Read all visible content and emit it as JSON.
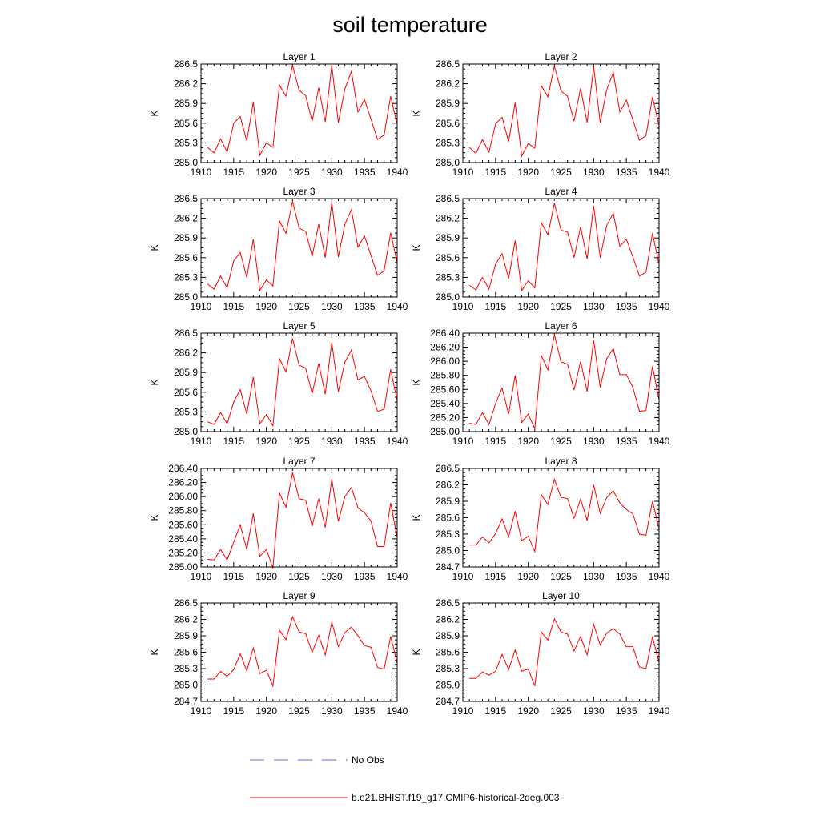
{
  "title": "soil temperature",
  "legend": [
    {
      "label": "No Obs",
      "color": "#6666cc",
      "style": "dashed"
    },
    {
      "label": "b.e21.BHIST.f19_g17.CMIP6-historical-2deg.003",
      "color": "#ff0000",
      "style": "solid"
    }
  ],
  "chart_data": [
    {
      "type": "line",
      "title": "Layer 1",
      "xlabel": "",
      "ylabel": "K",
      "xlim": [
        1910,
        1940
      ],
      "ylim": [
        285.0,
        286.5
      ],
      "xticks": [
        1910,
        1915,
        1920,
        1925,
        1930,
        1935,
        1940
      ],
      "yticks": [
        285.0,
        285.3,
        285.6,
        285.9,
        286.2,
        286.5
      ],
      "ytick_format": 1,
      "x": [
        1911,
        1912,
        1913,
        1914,
        1915,
        1916,
        1917,
        1918,
        1919,
        1920,
        1921,
        1922,
        1923,
        1924,
        1925,
        1926,
        1927,
        1928,
        1929,
        1930,
        1931,
        1932,
        1933,
        1934,
        1935,
        1936,
        1937,
        1938,
        1939,
        1940
      ],
      "series": [
        {
          "color": "#ff0000",
          "values": [
            285.23,
            285.15,
            285.36,
            285.16,
            285.6,
            285.7,
            285.33,
            285.92,
            285.11,
            285.3,
            285.23,
            286.18,
            286.01,
            286.48,
            286.1,
            286.02,
            285.63,
            286.14,
            285.62,
            286.48,
            285.61,
            286.12,
            286.39,
            285.77,
            285.96,
            285.66,
            285.35,
            285.42,
            286.01,
            285.58
          ]
        }
      ]
    },
    {
      "type": "line",
      "title": "Layer 2",
      "xlabel": "",
      "ylabel": "K",
      "xlim": [
        1910,
        1940
      ],
      "ylim": [
        285.0,
        286.5
      ],
      "xticks": [
        1910,
        1915,
        1920,
        1925,
        1930,
        1935,
        1940
      ],
      "yticks": [
        285.0,
        285.3,
        285.6,
        285.9,
        286.2,
        286.5
      ],
      "ytick_format": 1,
      "x": [
        1911,
        1912,
        1913,
        1914,
        1915,
        1916,
        1917,
        1918,
        1919,
        1920,
        1921,
        1922,
        1923,
        1924,
        1925,
        1926,
        1927,
        1928,
        1929,
        1930,
        1931,
        1932,
        1933,
        1934,
        1935,
        1936,
        1937,
        1938,
        1939,
        1940
      ],
      "series": [
        {
          "color": "#ff0000",
          "values": [
            285.23,
            285.14,
            285.35,
            285.16,
            285.59,
            285.69,
            285.32,
            285.91,
            285.1,
            285.29,
            285.22,
            286.17,
            286.0,
            286.47,
            286.09,
            286.01,
            285.63,
            286.13,
            285.61,
            286.46,
            285.61,
            286.11,
            286.37,
            285.77,
            285.95,
            285.65,
            285.34,
            285.41,
            286.0,
            285.56
          ]
        }
      ]
    },
    {
      "type": "line",
      "title": "Layer 3",
      "xlabel": "",
      "ylabel": "K",
      "xlim": [
        1910,
        1940
      ],
      "ylim": [
        285.0,
        286.5
      ],
      "xticks": [
        1910,
        1915,
        1920,
        1925,
        1930,
        1935,
        1940
      ],
      "yticks": [
        285.0,
        285.3,
        285.6,
        285.9,
        286.2,
        286.5
      ],
      "ytick_format": 1,
      "x": [
        1911,
        1912,
        1913,
        1914,
        1915,
        1916,
        1917,
        1918,
        1919,
        1920,
        1921,
        1922,
        1923,
        1924,
        1925,
        1926,
        1927,
        1928,
        1929,
        1930,
        1931,
        1932,
        1933,
        1934,
        1935,
        1936,
        1937,
        1938,
        1939,
        1940
      ],
      "series": [
        {
          "color": "#ff0000",
          "values": [
            285.2,
            285.12,
            285.32,
            285.14,
            285.55,
            285.68,
            285.3,
            285.88,
            285.1,
            285.26,
            285.17,
            286.16,
            285.97,
            286.46,
            286.05,
            286.0,
            285.62,
            286.11,
            285.6,
            286.44,
            285.61,
            286.11,
            286.33,
            285.76,
            285.93,
            285.63,
            285.33,
            285.4,
            285.98,
            285.52
          ]
        }
      ]
    },
    {
      "type": "line",
      "title": "Layer 4",
      "xlabel": "",
      "ylabel": "K",
      "xlim": [
        1910,
        1940
      ],
      "ylim": [
        285.0,
        286.5
      ],
      "xticks": [
        1910,
        1915,
        1920,
        1925,
        1930,
        1935,
        1940
      ],
      "yticks": [
        285.0,
        285.3,
        285.6,
        285.9,
        286.2,
        286.5
      ],
      "ytick_format": 1,
      "x": [
        1911,
        1912,
        1913,
        1914,
        1915,
        1916,
        1917,
        1918,
        1919,
        1920,
        1921,
        1922,
        1923,
        1924,
        1925,
        1926,
        1927,
        1928,
        1929,
        1930,
        1931,
        1932,
        1933,
        1934,
        1935,
        1936,
        1937,
        1938,
        1939,
        1940
      ],
      "series": [
        {
          "color": "#ff0000",
          "values": [
            285.18,
            285.11,
            285.3,
            285.12,
            285.5,
            285.66,
            285.28,
            285.86,
            285.1,
            285.25,
            285.14,
            286.13,
            285.95,
            286.43,
            286.02,
            285.99,
            285.6,
            286.07,
            285.58,
            286.39,
            285.6,
            286.09,
            286.28,
            285.77,
            285.88,
            285.61,
            285.32,
            285.38,
            285.97,
            285.5
          ]
        }
      ]
    },
    {
      "type": "line",
      "title": "Layer 5",
      "xlabel": "",
      "ylabel": "K",
      "xlim": [
        1910,
        1940
      ],
      "ylim": [
        285.0,
        286.5
      ],
      "xticks": [
        1910,
        1915,
        1920,
        1925,
        1930,
        1935,
        1940
      ],
      "yticks": [
        285.0,
        285.3,
        285.6,
        285.9,
        286.2,
        286.5
      ],
      "ytick_format": 1,
      "x": [
        1911,
        1912,
        1913,
        1914,
        1915,
        1916,
        1917,
        1918,
        1919,
        1920,
        1921,
        1922,
        1923,
        1924,
        1925,
        1926,
        1927,
        1928,
        1929,
        1930,
        1931,
        1932,
        1933,
        1934,
        1935,
        1936,
        1937,
        1938,
        1939,
        1940
      ],
      "series": [
        {
          "color": "#ff0000",
          "values": [
            285.15,
            285.11,
            285.29,
            285.12,
            285.45,
            285.64,
            285.27,
            285.83,
            285.12,
            285.26,
            285.09,
            286.11,
            285.91,
            286.42,
            286.01,
            285.97,
            285.58,
            286.04,
            285.57,
            286.36,
            285.61,
            286.06,
            286.24,
            285.79,
            285.84,
            285.62,
            285.31,
            285.34,
            285.95,
            285.47
          ]
        }
      ]
    },
    {
      "type": "line",
      "title": "Layer 6",
      "xlabel": "",
      "ylabel": "K",
      "xlim": [
        1910,
        1940
      ],
      "ylim": [
        285.0,
        286.4
      ],
      "xticks": [
        1910,
        1915,
        1920,
        1925,
        1930,
        1935,
        1940
      ],
      "yticks": [
        285.0,
        285.2,
        285.4,
        285.6,
        285.8,
        286.0,
        286.2,
        286.4
      ],
      "ytick_format": 2,
      "x": [
        1911,
        1912,
        1913,
        1914,
        1915,
        1916,
        1917,
        1918,
        1919,
        1920,
        1921,
        1922,
        1923,
        1924,
        1925,
        1926,
        1927,
        1928,
        1929,
        1930,
        1931,
        1932,
        1933,
        1934,
        1935,
        1936,
        1937,
        1938,
        1939,
        1940
      ],
      "series": [
        {
          "color": "#ff0000",
          "values": [
            285.12,
            285.1,
            285.27,
            285.1,
            285.4,
            285.62,
            285.25,
            285.8,
            285.13,
            285.25,
            285.04,
            286.08,
            285.88,
            286.38,
            285.99,
            285.96,
            285.59,
            286.0,
            285.57,
            286.3,
            285.63,
            286.04,
            286.18,
            285.81,
            285.81,
            285.63,
            285.29,
            285.3,
            285.93,
            285.45
          ]
        }
      ]
    },
    {
      "type": "line",
      "title": "Layer 7",
      "xlabel": "",
      "ylabel": "K",
      "xlim": [
        1910,
        1940
      ],
      "ylim": [
        285.0,
        286.4
      ],
      "xticks": [
        1910,
        1915,
        1920,
        1925,
        1930,
        1935,
        1940
      ],
      "yticks": [
        285.0,
        285.2,
        285.4,
        285.6,
        285.8,
        286.0,
        286.2,
        286.4
      ],
      "ytick_format": 2,
      "x": [
        1911,
        1912,
        1913,
        1914,
        1915,
        1916,
        1917,
        1918,
        1919,
        1920,
        1921,
        1922,
        1923,
        1924,
        1925,
        1926,
        1927,
        1928,
        1929,
        1930,
        1931,
        1932,
        1933,
        1934,
        1935,
        1936,
        1937,
        1938,
        1939,
        1940
      ],
      "series": [
        {
          "color": "#ff0000",
          "values": [
            285.11,
            285.1,
            285.25,
            285.1,
            285.35,
            285.6,
            285.25,
            285.76,
            285.15,
            285.25,
            284.98,
            286.05,
            285.85,
            286.34,
            285.97,
            285.95,
            285.58,
            285.97,
            285.56,
            286.25,
            285.65,
            286.0,
            286.13,
            285.84,
            285.77,
            285.65,
            285.29,
            285.29,
            285.91,
            285.42
          ]
        }
      ]
    },
    {
      "type": "line",
      "title": "Layer 8",
      "xlabel": "",
      "ylabel": "K",
      "xlim": [
        1910,
        1940
      ],
      "ylim": [
        284.7,
        286.5
      ],
      "xticks": [
        1910,
        1915,
        1920,
        1925,
        1930,
        1935,
        1940
      ],
      "yticks": [
        284.7,
        285.0,
        285.3,
        285.6,
        285.9,
        286.2,
        286.5
      ],
      "ytick_format": 1,
      "x": [
        1911,
        1912,
        1913,
        1914,
        1915,
        1916,
        1917,
        1918,
        1919,
        1920,
        1921,
        1922,
        1923,
        1924,
        1925,
        1926,
        1927,
        1928,
        1929,
        1930,
        1931,
        1932,
        1933,
        1934,
        1935,
        1936,
        1937,
        1938,
        1939,
        1940
      ],
      "series": [
        {
          "color": "#ff0000",
          "values": [
            285.1,
            285.1,
            285.25,
            285.14,
            285.31,
            285.58,
            285.25,
            285.72,
            285.18,
            285.26,
            284.98,
            286.02,
            285.84,
            286.3,
            285.97,
            285.95,
            285.59,
            285.94,
            285.55,
            286.2,
            285.68,
            285.97,
            286.09,
            285.87,
            285.75,
            285.67,
            285.3,
            285.28,
            285.9,
            285.4
          ]
        }
      ]
    },
    {
      "type": "line",
      "title": "Layer 9",
      "xlabel": "",
      "ylabel": "K",
      "xlim": [
        1910,
        1940
      ],
      "ylim": [
        284.7,
        286.5
      ],
      "xticks": [
        1910,
        1915,
        1920,
        1925,
        1930,
        1935,
        1940
      ],
      "yticks": [
        284.7,
        285.0,
        285.3,
        285.6,
        285.9,
        286.2,
        286.5
      ],
      "ytick_format": 1,
      "x": [
        1911,
        1912,
        1913,
        1914,
        1915,
        1916,
        1917,
        1918,
        1919,
        1920,
        1921,
        1922,
        1923,
        1924,
        1925,
        1926,
        1927,
        1928,
        1929,
        1930,
        1931,
        1932,
        1933,
        1934,
        1935,
        1936,
        1937,
        1938,
        1939,
        1940
      ],
      "series": [
        {
          "color": "#ff0000",
          "values": [
            285.11,
            285.11,
            285.25,
            285.16,
            285.28,
            285.57,
            285.26,
            285.68,
            285.21,
            285.27,
            284.98,
            286.0,
            285.83,
            286.25,
            285.97,
            285.94,
            285.6,
            285.91,
            285.55,
            286.15,
            285.7,
            285.96,
            286.06,
            285.9,
            285.72,
            285.69,
            285.32,
            285.29,
            285.89,
            285.4
          ]
        }
      ]
    },
    {
      "type": "line",
      "title": "Layer 10",
      "xlabel": "",
      "ylabel": "K",
      "xlim": [
        1910,
        1940
      ],
      "ylim": [
        284.7,
        286.5
      ],
      "xticks": [
        1910,
        1915,
        1920,
        1925,
        1930,
        1935,
        1940
      ],
      "yticks": [
        284.7,
        285.0,
        285.3,
        285.6,
        285.9,
        286.2,
        286.5
      ],
      "ytick_format": 1,
      "x": [
        1911,
        1912,
        1913,
        1914,
        1915,
        1916,
        1917,
        1918,
        1919,
        1920,
        1921,
        1922,
        1923,
        1924,
        1925,
        1926,
        1927,
        1928,
        1929,
        1930,
        1931,
        1932,
        1933,
        1934,
        1935,
        1936,
        1937,
        1938,
        1939,
        1940
      ],
      "series": [
        {
          "color": "#ff0000",
          "values": [
            285.12,
            285.12,
            285.24,
            285.18,
            285.25,
            285.56,
            285.28,
            285.64,
            285.25,
            285.29,
            284.98,
            285.97,
            285.82,
            286.21,
            285.97,
            285.93,
            285.62,
            285.89,
            285.55,
            286.11,
            285.73,
            285.95,
            286.03,
            285.93,
            285.7,
            285.7,
            285.33,
            285.3,
            285.88,
            285.41
          ]
        }
      ]
    }
  ]
}
